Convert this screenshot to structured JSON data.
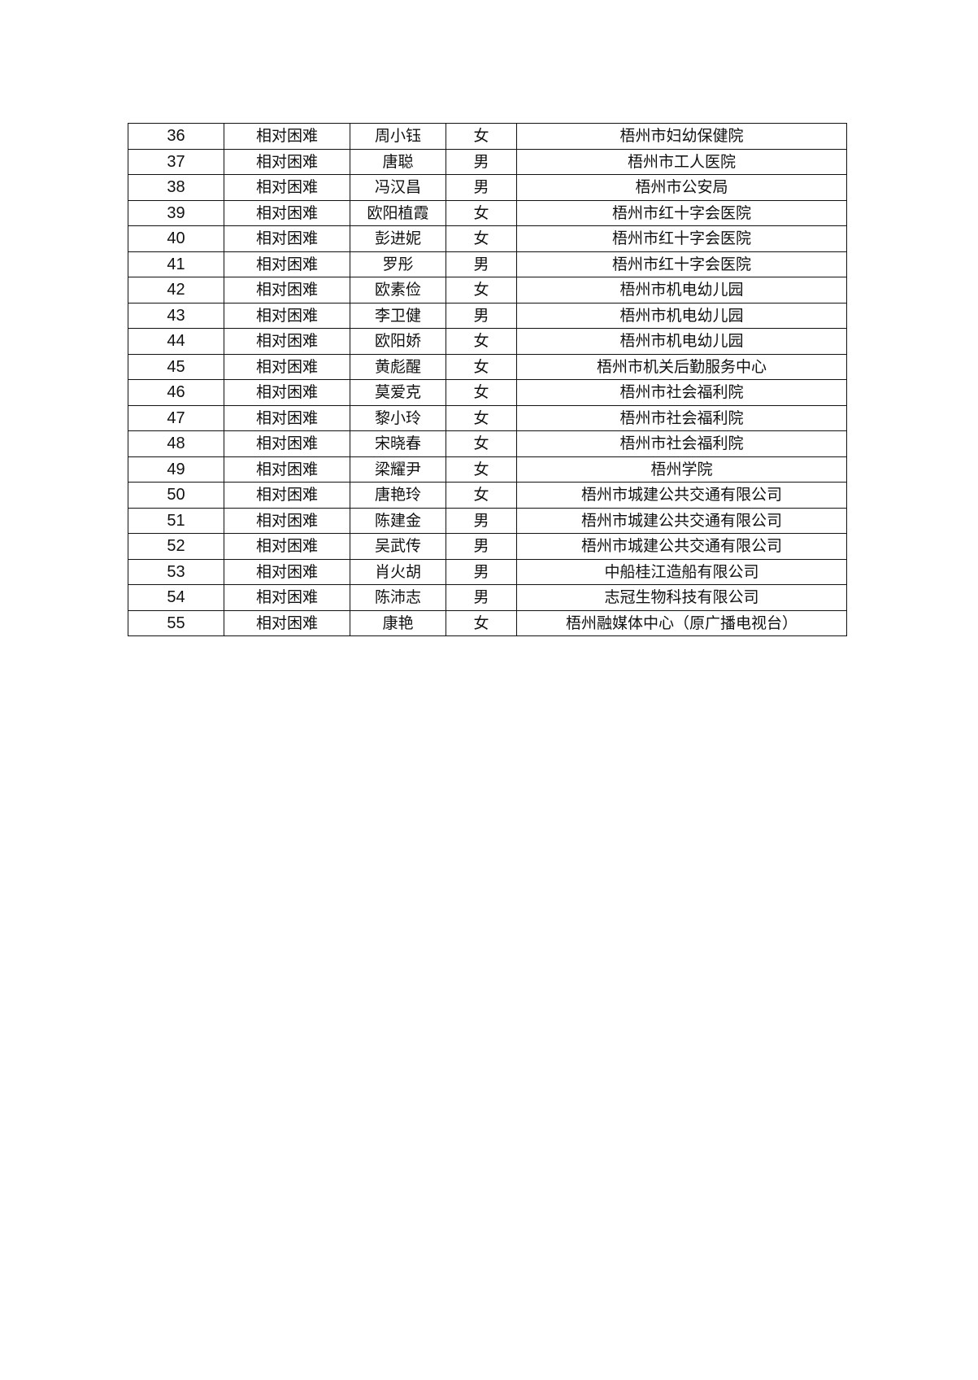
{
  "table": {
    "rows": [
      [
        "36",
        "相对困难",
        "周小钰",
        "女",
        "梧州市妇幼保健院"
      ],
      [
        "37",
        "相对困难",
        "唐聪",
        "男",
        "梧州市工人医院"
      ],
      [
        "38",
        "相对困难",
        "冯汉昌",
        "男",
        "梧州市公安局"
      ],
      [
        "39",
        "相对困难",
        "欧阳植霞",
        "女",
        "梧州市红十字会医院"
      ],
      [
        "40",
        "相对困难",
        "彭进妮",
        "女",
        "梧州市红十字会医院"
      ],
      [
        "41",
        "相对困难",
        "罗彤",
        "男",
        "梧州市红十字会医院"
      ],
      [
        "42",
        "相对困难",
        "欧素俭",
        "女",
        "梧州市机电幼儿园"
      ],
      [
        "43",
        "相对困难",
        "李卫健",
        "男",
        "梧州市机电幼儿园"
      ],
      [
        "44",
        "相对困难",
        "欧阳娇",
        "女",
        "梧州市机电幼儿园"
      ],
      [
        "45",
        "相对困难",
        "黄彪醒",
        "女",
        "梧州市机关后勤服务中心"
      ],
      [
        "46",
        "相对困难",
        "莫爱克",
        "女",
        "梧州市社会福利院"
      ],
      [
        "47",
        "相对困难",
        "黎小玲",
        "女",
        "梧州市社会福利院"
      ],
      [
        "48",
        "相对困难",
        "宋晓春",
        "女",
        "梧州市社会福利院"
      ],
      [
        "49",
        "相对困难",
        "梁耀尹",
        "女",
        "梧州学院"
      ],
      [
        "50",
        "相对困难",
        "唐艳玲",
        "女",
        "梧州市城建公共交通有限公司"
      ],
      [
        "51",
        "相对困难",
        "陈建金",
        "男",
        "梧州市城建公共交通有限公司"
      ],
      [
        "52",
        "相对困难",
        "吴武传",
        "男",
        "梧州市城建公共交通有限公司"
      ],
      [
        "53",
        "相对困难",
        "肖火胡",
        "男",
        "中船桂江造船有限公司"
      ],
      [
        "54",
        "相对困难",
        "陈沛志",
        "男",
        "志冠生物科技有限公司"
      ],
      [
        "55",
        "相对困难",
        "康艳",
        "女",
        "梧州融媒体中心（原广播电视台）"
      ]
    ]
  }
}
